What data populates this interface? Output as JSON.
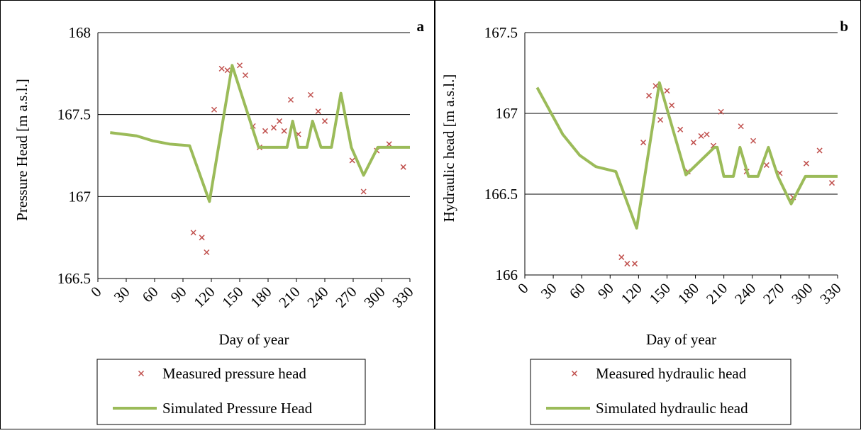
{
  "chart_data": [
    {
      "type": "line",
      "panel_label": "a",
      "y_label": "Pressure Head [m a.s.l.]",
      "x_label": "Day of year",
      "xlim": [
        0,
        330
      ],
      "xticks": [
        0,
        30,
        60,
        90,
        120,
        150,
        180,
        210,
        240,
        270,
        300,
        330
      ],
      "ylim": [
        166.5,
        168
      ],
      "yticks": [
        166.5,
        167,
        167.5,
        168
      ],
      "grid": true,
      "series": [
        {
          "name": "Measured pressure head",
          "type": "scatter",
          "color": "#c0504d",
          "x": [
            101,
            110,
            115,
            123,
            131,
            137,
            150,
            156,
            164,
            171,
            177,
            186,
            192,
            197,
            204,
            212,
            225,
            233,
            240,
            269,
            281,
            295,
            308,
            323
          ],
          "values": [
            166.78,
            166.75,
            166.66,
            167.53,
            167.78,
            167.77,
            167.8,
            167.74,
            167.43,
            167.3,
            167.4,
            167.42,
            167.46,
            167.4,
            167.59,
            167.38,
            167.62,
            167.52,
            167.46,
            167.22,
            167.03,
            167.28,
            167.32,
            167.18
          ]
        },
        {
          "name": "Simulated Pressure Head",
          "type": "line",
          "color": "#9bbb59",
          "x": [
            13,
            41,
            58,
            76,
            97,
            118,
            142,
            170,
            200,
            206,
            212,
            221,
            227,
            236,
            247,
            257,
            268,
            281,
            296,
            330
          ],
          "values": [
            167.39,
            167.37,
            167.34,
            167.32,
            167.31,
            166.97,
            167.8,
            167.3,
            167.3,
            167.46,
            167.3,
            167.3,
            167.46,
            167.3,
            167.3,
            167.63,
            167.3,
            167.13,
            167.3,
            167.3
          ]
        }
      ]
    },
    {
      "type": "line",
      "panel_label": "b",
      "y_label": "Hydraulic head [m a.s.l.]",
      "x_label": "Day of year",
      "xlim": [
        0,
        330
      ],
      "xticks": [
        0,
        30,
        60,
        90,
        120,
        150,
        180,
        210,
        240,
        270,
        300,
        330
      ],
      "ylim": [
        166,
        167.5
      ],
      "yticks": [
        166,
        166.5,
        167,
        167.5
      ],
      "grid": true,
      "series": [
        {
          "name": "Measured hydraulic head",
          "type": "scatter",
          "color": "#c0504d",
          "x": [
            102,
            108,
            116,
            125,
            131,
            138,
            143,
            150,
            155,
            164,
            172,
            178,
            186,
            192,
            199,
            207,
            228,
            234,
            241,
            255,
            269,
            283,
            297,
            311,
            324
          ],
          "values": [
            166.11,
            166.07,
            166.07,
            166.82,
            167.11,
            167.17,
            166.96,
            167.14,
            167.05,
            166.9,
            166.64,
            166.82,
            166.86,
            166.87,
            166.8,
            167.01,
            166.92,
            166.64,
            166.83,
            166.68,
            166.63,
            166.48,
            166.69,
            166.77,
            166.57
          ]
        },
        {
          "name": "Simulated hydraulic head",
          "type": "line",
          "color": "#9bbb59",
          "x": [
            13,
            40,
            58,
            75,
            96,
            118,
            142,
            170,
            200,
            203,
            210,
            220,
            227,
            236,
            246,
            257,
            267,
            281,
            296,
            330
          ],
          "values": [
            167.16,
            166.87,
            166.74,
            166.67,
            166.64,
            166.29,
            167.19,
            166.62,
            166.79,
            166.79,
            166.61,
            166.61,
            166.79,
            166.61,
            166.61,
            166.79,
            166.61,
            166.44,
            166.61,
            166.61
          ]
        }
      ]
    }
  ]
}
